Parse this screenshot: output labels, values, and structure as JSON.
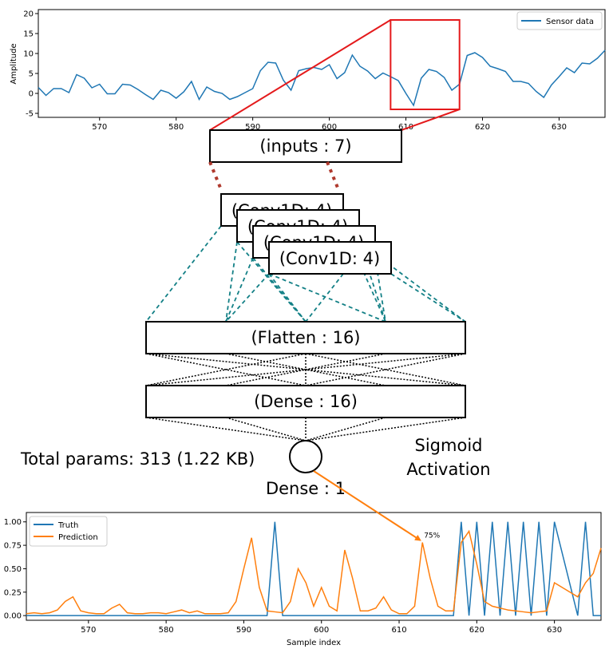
{
  "colors": {
    "sensor": "#1f77b4",
    "truth": "#1f77b4",
    "prediction": "#ff7f0e",
    "zoom": "#e41a1c",
    "dotted_red": "#b03a2e",
    "dashed_teal": "#138086",
    "arrow": "#ff7f0e"
  },
  "layers": {
    "inputs": "(inputs : 7)",
    "conv": [
      "(Conv1D: 4)",
      "(Conv1D: 4)",
      "(Conv1D: 4)",
      "(Conv1D: 4)"
    ],
    "flatten": "(Flatten : 16)",
    "dense": "(Dense : 16)",
    "output": "Dense : 1"
  },
  "total_params": "Total params: 313 (1.22 KB)",
  "activation": [
    "Sigmoid",
    "Activation"
  ],
  "annotation": "75%",
  "chart_data": [
    {
      "type": "line",
      "ylabel": "Amplitude",
      "xlabel": "",
      "xlim": [
        562,
        636
      ],
      "ylim": [
        -6,
        21
      ],
      "xticks": [
        570,
        580,
        590,
        600,
        610,
        620,
        630
      ],
      "yticks": [
        -5,
        0,
        5,
        10,
        15,
        20
      ],
      "legend": "top-right",
      "zoom_window": [
        608,
        617
      ],
      "series": [
        {
          "name": "Sensor data",
          "x": [
            562,
            563,
            564,
            565,
            566,
            567,
            568,
            569,
            570,
            571,
            572,
            573,
            574,
            575,
            576,
            577,
            578,
            579,
            580,
            581,
            582,
            583,
            584,
            585,
            586,
            587,
            588,
            589,
            590,
            591,
            592,
            593,
            594,
            595,
            596,
            597,
            598,
            599,
            600,
            601,
            602,
            603,
            604,
            605,
            606,
            607,
            608,
            609,
            610,
            611,
            612,
            613,
            614,
            615,
            616,
            617,
            618,
            619,
            620,
            621,
            622,
            623,
            624,
            625,
            626,
            627,
            628,
            629,
            630,
            631,
            632,
            633,
            634,
            635,
            636
          ],
          "values": [
            1.5,
            -0.5,
            1.2,
            1.2,
            0.2,
            4.7,
            3.8,
            1.4,
            2.3,
            -0.1,
            -0.1,
            2.3,
            2.1,
            1.0,
            -0.3,
            -1.5,
            0.8,
            0.2,
            -1.2,
            0.4,
            3.0,
            -1.5,
            1.6,
            0.5,
            0.0,
            -1.5,
            -0.8,
            0.2,
            1.2,
            5.7,
            7.8,
            7.6,
            3.3,
            0.8,
            5.7,
            6.2,
            6.5,
            6.0,
            7.2,
            3.7,
            5.2,
            9.6,
            6.8,
            5.6,
            3.7,
            5.1,
            4.2,
            3.2,
            0.0,
            -3.0,
            3.8,
            6.0,
            5.5,
            4.0,
            0.8,
            2.3,
            9.5,
            10.2,
            9.0,
            6.8,
            6.2,
            5.5,
            3.0,
            3.0,
            2.5,
            0.5,
            -1.0,
            2.1,
            4.2,
            6.4,
            5.2,
            7.6,
            7.4,
            8.8,
            10.8
          ]
        }
      ]
    },
    {
      "type": "line",
      "xlabel": "Sample index",
      "ylabel": "",
      "xlim": [
        562,
        636
      ],
      "ylim": [
        -0.05,
        1.1
      ],
      "xticks": [
        570,
        580,
        590,
        600,
        610,
        620,
        630
      ],
      "yticks": [
        0.0,
        0.25,
        0.5,
        0.75,
        1.0
      ],
      "ytick_labels": [
        "0.00",
        "0.25",
        "0.50",
        "0.75",
        "1.00"
      ],
      "legend": "top-left",
      "series": [
        {
          "name": "Truth",
          "x": [
            562,
            593,
            594,
            595,
            617,
            618,
            619,
            620,
            621,
            622,
            623,
            624,
            625,
            626,
            627,
            628,
            629,
            630,
            633,
            634,
            635,
            636
          ],
          "values": [
            0,
            0,
            1,
            0,
            0,
            1,
            0,
            1,
            0,
            1,
            0,
            1,
            0,
            1,
            0,
            1,
            0,
            1,
            0,
            1,
            0,
            0
          ]
        },
        {
          "name": "Prediction",
          "x": [
            562,
            563,
            564,
            565,
            566,
            567,
            568,
            569,
            570,
            571,
            572,
            573,
            574,
            575,
            576,
            577,
            578,
            579,
            580,
            581,
            582,
            583,
            584,
            585,
            586,
            587,
            588,
            589,
            590,
            591,
            592,
            593,
            594,
            595,
            596,
            597,
            598,
            599,
            600,
            601,
            602,
            603,
            604,
            605,
            606,
            607,
            608,
            609,
            610,
            611,
            612,
            613,
            614,
            615,
            616,
            617,
            618,
            619,
            620,
            621,
            622,
            623,
            624,
            625,
            626,
            627,
            628,
            629,
            630,
            631,
            632,
            633,
            634,
            635,
            636
          ],
          "values": [
            0.02,
            0.03,
            0.02,
            0.03,
            0.06,
            0.15,
            0.2,
            0.05,
            0.03,
            0.02,
            0.02,
            0.08,
            0.12,
            0.03,
            0.02,
            0.02,
            0.03,
            0.03,
            0.02,
            0.04,
            0.06,
            0.03,
            0.05,
            0.02,
            0.02,
            0.02,
            0.03,
            0.15,
            0.5,
            0.83,
            0.3,
            0.05,
            0.04,
            0.03,
            0.15,
            0.5,
            0.35,
            0.1,
            0.3,
            0.1,
            0.05,
            0.7,
            0.4,
            0.05,
            0.05,
            0.08,
            0.2,
            0.06,
            0.02,
            0.02,
            0.1,
            0.78,
            0.4,
            0.1,
            0.05,
            0.05,
            0.78,
            0.9,
            0.55,
            0.15,
            0.1,
            0.08,
            0.06,
            0.05,
            0.04,
            0.03,
            0.04,
            0.05,
            0.35,
            0.3,
            0.25,
            0.2,
            0.35,
            0.45,
            0.72
          ]
        }
      ]
    }
  ]
}
